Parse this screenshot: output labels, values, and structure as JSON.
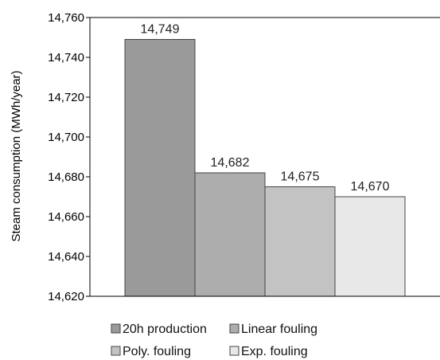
{
  "chart_data": {
    "type": "bar",
    "title": "",
    "xlabel": "",
    "ylabel": "Steam consumption (MWh/year)",
    "ylim": [
      14620,
      14760
    ],
    "yticks": [
      14620,
      14640,
      14660,
      14680,
      14700,
      14720,
      14740,
      14760
    ],
    "ytick_labels": [
      "14,620",
      "14,640",
      "14,660",
      "14,680",
      "14,700",
      "14,720",
      "14,740",
      "14,760"
    ],
    "grid": false,
    "legend_position": "bottom",
    "categories": [
      "20h production",
      "Linear fouling",
      "Poly. fouling",
      "Exp. fouling"
    ],
    "values": [
      14749,
      14682,
      14675,
      14670
    ],
    "value_labels": [
      "14,749",
      "14,682",
      "14,675",
      "14,670"
    ],
    "colors": [
      "#9a9a9a",
      "#adadad",
      "#c3c3c3",
      "#e8e8e8"
    ],
    "bar_stroke": "#444444",
    "axis_color": "#000000"
  }
}
